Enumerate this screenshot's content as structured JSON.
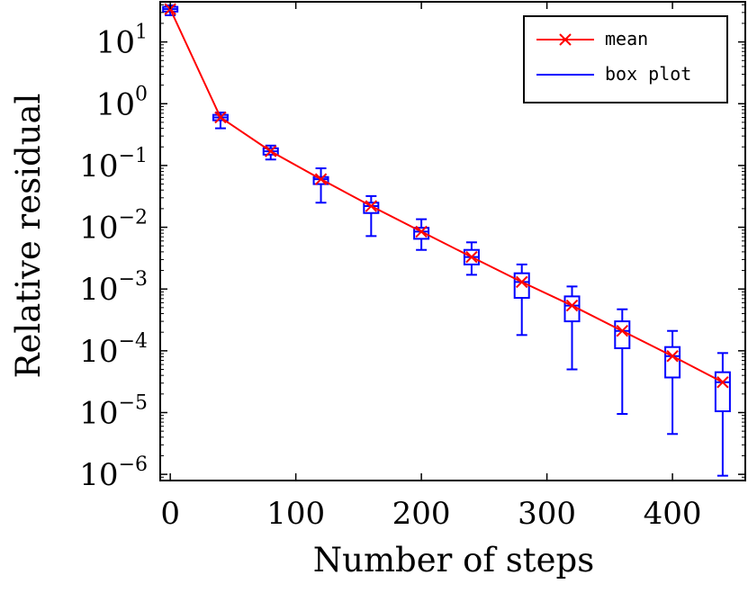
{
  "chart_data": {
    "type": "line",
    "title": "",
    "xlabel": "Number of steps",
    "ylabel": "Relative residual",
    "xlim": [
      -8,
      458
    ],
    "ylim_log10": [
      -6.1,
      1.65
    ],
    "yscale": "log",
    "grid": false,
    "legend_position": "top-right",
    "x_ticks": [
      0,
      100,
      200,
      300,
      400
    ],
    "y_ticks": [
      {
        "base": "10",
        "exp": "1",
        "value": 10
      },
      {
        "base": "10",
        "exp": "0",
        "value": 1
      },
      {
        "base": "10",
        "exp": "−1",
        "value": 0.1
      },
      {
        "base": "10",
        "exp": "−2",
        "value": 0.01
      },
      {
        "base": "10",
        "exp": "−3",
        "value": 0.001
      },
      {
        "base": "10",
        "exp": "−4",
        "value": 0.0001
      },
      {
        "base": "10",
        "exp": "−5",
        "value": 1e-05
      },
      {
        "base": "10",
        "exp": "−6",
        "value": 1e-06
      }
    ],
    "legend": [
      {
        "label": "mean",
        "color": "#ff0000",
        "marker": "x"
      },
      {
        "label": "box plot",
        "color": "#0000ff",
        "marker": "none"
      }
    ],
    "mean_series": {
      "name": "mean",
      "color": "#ff0000",
      "x": [
        0,
        40,
        80,
        120,
        160,
        200,
        240,
        280,
        320,
        360,
        400,
        440
      ],
      "y": [
        34,
        0.6,
        0.17,
        0.06,
        0.022,
        0.0085,
        0.0033,
        0.0013,
        0.00054,
        0.00021,
        8.2e-05,
        3.1e-05
      ]
    },
    "box_series": {
      "name": "box plot",
      "color": "#0000ff",
      "boxes": [
        {
          "x": 0,
          "min": 27,
          "q1": 31,
          "median": 34,
          "q3": 37,
          "max": 39
        },
        {
          "x": 40,
          "min": 0.4,
          "q1": 0.54,
          "median": 0.6,
          "q3": 0.66,
          "max": 0.72
        },
        {
          "x": 80,
          "min": 0.125,
          "q1": 0.15,
          "median": 0.17,
          "q3": 0.19,
          "max": 0.21
        },
        {
          "x": 120,
          "min": 0.025,
          "q1": 0.05,
          "median": 0.06,
          "q3": 0.065,
          "max": 0.09
        },
        {
          "x": 160,
          "min": 0.0072,
          "q1": 0.017,
          "median": 0.022,
          "q3": 0.025,
          "max": 0.032
        },
        {
          "x": 200,
          "min": 0.0043,
          "q1": 0.0065,
          "median": 0.0085,
          "q3": 0.0098,
          "max": 0.0135
        },
        {
          "x": 240,
          "min": 0.0017,
          "q1": 0.0025,
          "median": 0.0033,
          "q3": 0.0043,
          "max": 0.0057
        },
        {
          "x": 280,
          "min": 0.00018,
          "q1": 0.00072,
          "median": 0.0013,
          "q3": 0.0018,
          "max": 0.0025
        },
        {
          "x": 320,
          "min": 5e-05,
          "q1": 0.0003,
          "median": 0.00054,
          "q3": 0.00076,
          "max": 0.0011
        },
        {
          "x": 360,
          "min": 9.5e-06,
          "q1": 0.00011,
          "median": 0.00021,
          "q3": 0.0003,
          "max": 0.00047
        },
        {
          "x": 400,
          "min": 4.5e-06,
          "q1": 3.7e-05,
          "median": 8.2e-05,
          "q3": 0.000115,
          "max": 0.00021
        },
        {
          "x": 440,
          "min": 9.5e-07,
          "q1": 1.05e-05,
          "median": 3.1e-05,
          "q3": 4.5e-05,
          "max": 9.2e-05
        }
      ]
    }
  }
}
